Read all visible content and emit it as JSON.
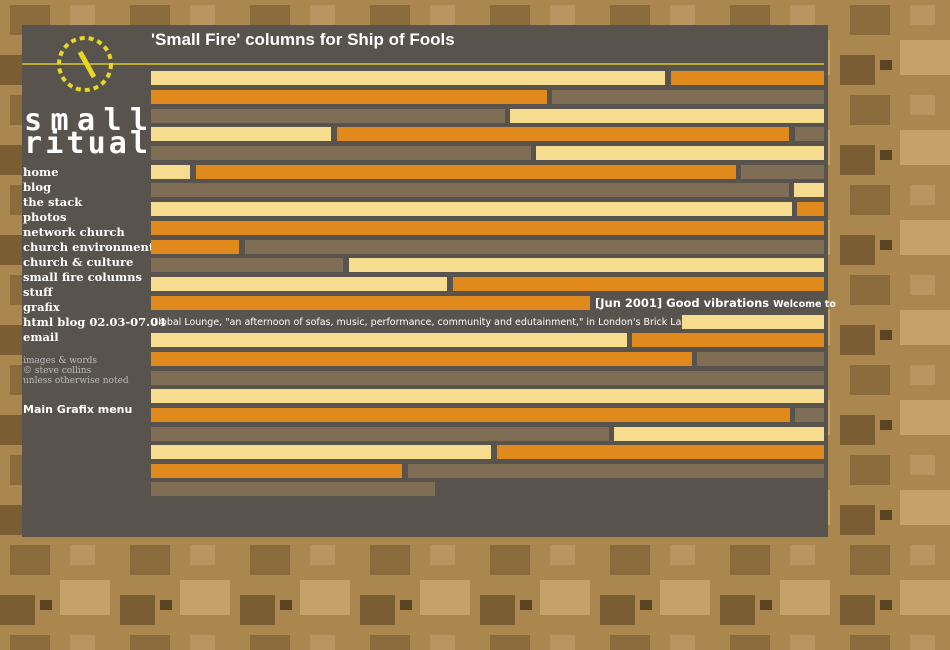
{
  "header": {
    "title": "'Small Fire' columns for Ship of Fools",
    "logo": [
      "small",
      "ritual"
    ]
  },
  "nav": [
    "home",
    "blog",
    "the stack",
    "photos",
    "network church",
    "church environment",
    "church & culture",
    "small fire columns",
    "stuff",
    "grafix",
    "html blog 02.03-07.04",
    "email"
  ],
  "credit": [
    "images & words",
    "© steve collins",
    "unless otherwise noted"
  ],
  "menu_link": "Main Grafix menu",
  "article": {
    "heading": "[Jun 2001] Good vibrations",
    "text": [
      "Welcome to",
      "Global Lounge, \"an afternoon of sofas, music, performance, community and edutainment,\" in London's Brick Lane."
    ]
  }
}
